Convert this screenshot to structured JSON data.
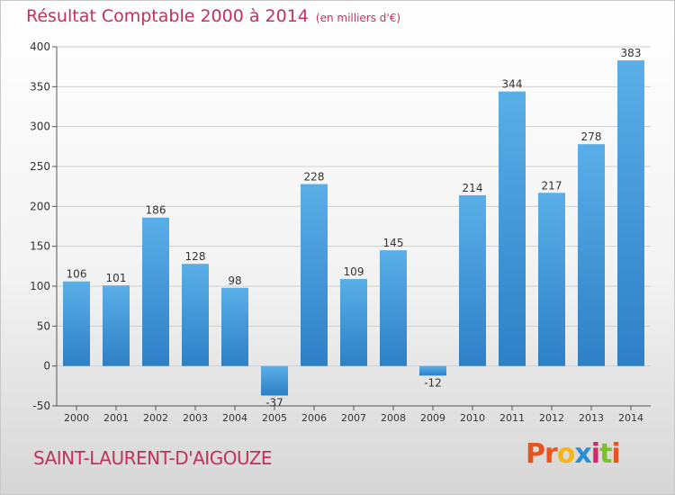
{
  "header": {
    "title": "Résultat Comptable 2000 à 2014",
    "subtitle": "(en milliers d'€)"
  },
  "footer": {
    "commune": "SAINT-LAURENT-D'AIGOUZE",
    "logo_letters": [
      "P",
      "r",
      "o",
      "x",
      "i",
      "t",
      "i"
    ],
    "logo_colors": [
      "#e8531f",
      "#e8531f",
      "#f7b51c",
      "#2a8ed4",
      "#d5266c",
      "#7bbf2a",
      "#e8531f"
    ]
  },
  "colors": {
    "bar_top": "#5aafe8",
    "bar_bottom": "#2d80c6",
    "axis_text": "#333333",
    "grid": "#cfcfcf"
  },
  "chart_data": {
    "type": "bar",
    "categories": [
      "2000",
      "2001",
      "2002",
      "2003",
      "2004",
      "2005",
      "2006",
      "2007",
      "2008",
      "2009",
      "2010",
      "2011",
      "2012",
      "2013",
      "2014"
    ],
    "values": [
      106,
      101,
      186,
      128,
      98,
      -37,
      228,
      109,
      145,
      -12,
      214,
      344,
      217,
      278,
      383
    ],
    "yticks": [
      -50,
      0,
      50,
      100,
      150,
      200,
      250,
      300,
      350,
      400
    ],
    "ylim": [
      -50,
      400
    ],
    "grid": true
  }
}
